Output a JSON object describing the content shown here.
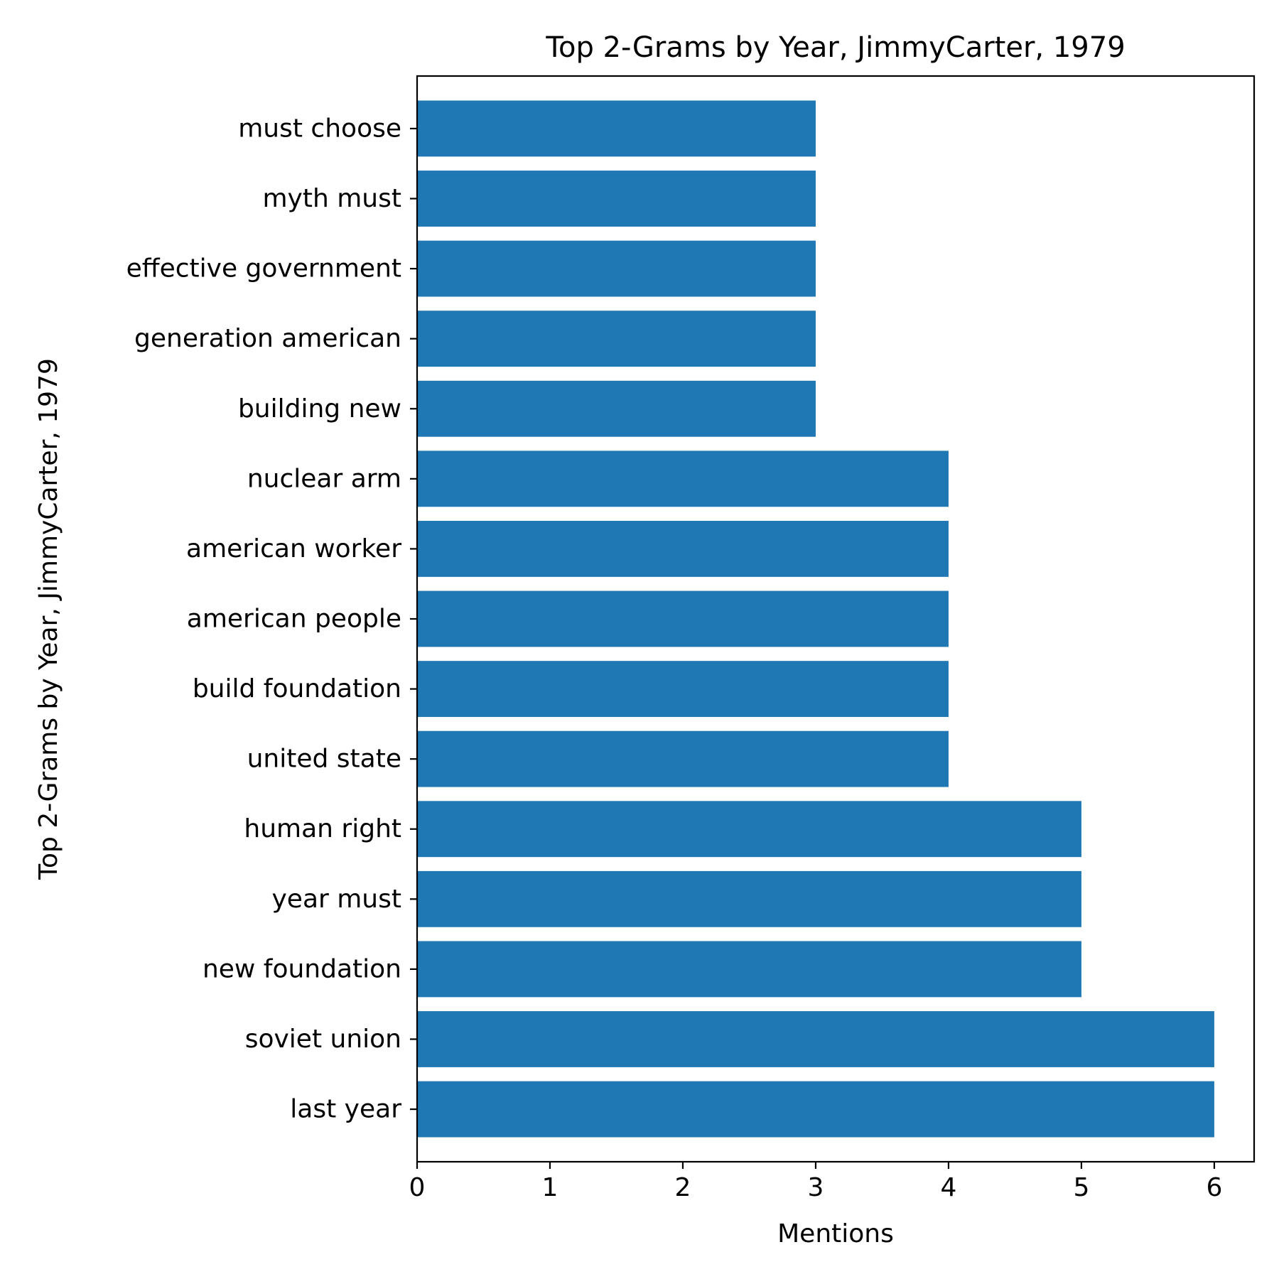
{
  "chart_data": {
    "type": "bar",
    "orientation": "horizontal",
    "title": "Top 2-Grams by Year, JimmyCarter, 1979",
    "xlabel": "Mentions",
    "ylabel": "Top 2-Grams by Year, JimmyCarter, 1979",
    "categories": [
      "last year",
      "soviet union",
      "new foundation",
      "year must",
      "human right",
      "united state",
      "build foundation",
      "american people",
      "american worker",
      "nuclear arm",
      "building new",
      "generation american",
      "effective government",
      "myth must",
      "must choose"
    ],
    "values": [
      6,
      6,
      5,
      5,
      5,
      4,
      4,
      4,
      4,
      4,
      3,
      3,
      3,
      3,
      3
    ],
    "xlim": [
      0,
      6.3
    ],
    "xticks": [
      0,
      1,
      2,
      3,
      4,
      5,
      6
    ],
    "bar_color": "#1f77b4",
    "grid": false,
    "legend": "none"
  }
}
